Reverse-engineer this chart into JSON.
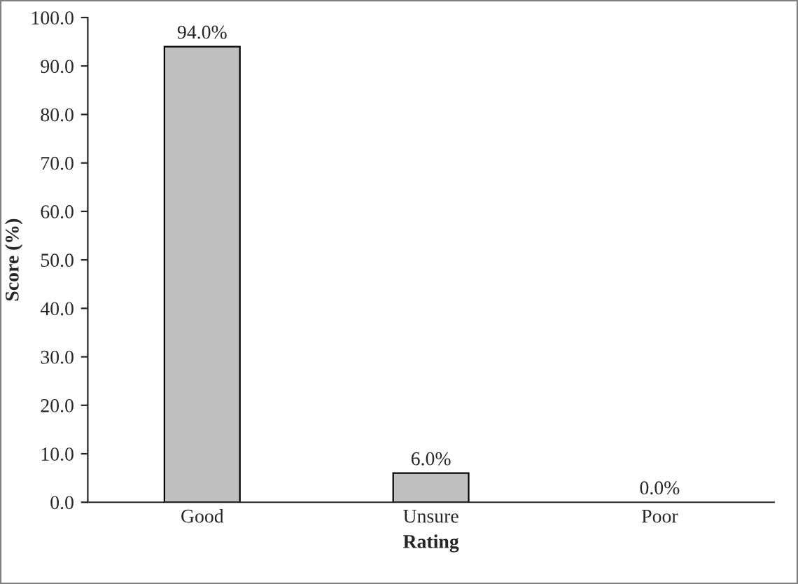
{
  "chart_data": {
    "type": "bar",
    "xlabel": "Rating",
    "ylabel": "Score (%)",
    "categories": [
      "Good",
      "Unsure",
      "Poor"
    ],
    "values": [
      94.0,
      6.0,
      0.0
    ],
    "color": "#c0c0c0",
    "value_labels": [
      "94.0%",
      "6.0%",
      "0.0%"
    ],
    "ylim": [
      0,
      100
    ],
    "yticks": [
      {
        "value": 0,
        "label": "0.0"
      },
      {
        "value": 10,
        "label": "10.0"
      },
      {
        "value": 20,
        "label": "20.0"
      },
      {
        "value": 30,
        "label": "30.0"
      },
      {
        "value": 40,
        "label": "40.0"
      },
      {
        "value": 50,
        "label": "50.0"
      },
      {
        "value": 60,
        "label": "60.0"
      },
      {
        "value": 70,
        "label": "70.0"
      },
      {
        "value": 80,
        "label": "80.0"
      },
      {
        "value": 90,
        "label": "90.0"
      },
      {
        "value": 100,
        "label": "100.0"
      }
    ],
    "grid": false,
    "legend": false
  }
}
